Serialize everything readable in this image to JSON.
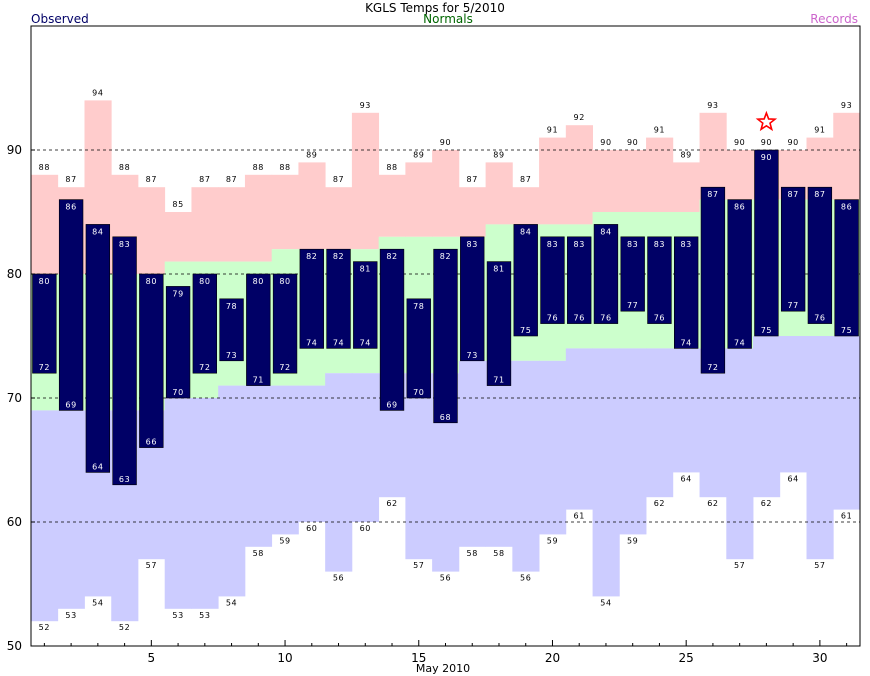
{
  "chart_data": {
    "type": "bar",
    "title": "KGLS Temps for 5/2010",
    "xlabel": "May 2010",
    "ylabel": "",
    "legend": {
      "observed": "Observed",
      "normals": "Normals",
      "records": "Records",
      "placement": "top"
    },
    "xlim": [
      0.5,
      31.5
    ],
    "ylim": [
      50,
      100
    ],
    "x_ticks": [
      5,
      10,
      15,
      20,
      25,
      30
    ],
    "y_ticks": [
      50,
      60,
      70,
      80,
      90
    ],
    "dashed_gridlines": [
      60,
      70,
      80,
      90
    ],
    "days": [
      1,
      2,
      3,
      4,
      5,
      6,
      7,
      8,
      9,
      10,
      11,
      12,
      13,
      14,
      15,
      16,
      17,
      18,
      19,
      20,
      21,
      22,
      23,
      24,
      25,
      26,
      27,
      28,
      29,
      30,
      31
    ],
    "observed_high": [
      80,
      86,
      84,
      83,
      80,
      79,
      80,
      78,
      80,
      80,
      82,
      82,
      81,
      82,
      78,
      82,
      83,
      81,
      84,
      83,
      83,
      84,
      83,
      83,
      83,
      87,
      86,
      90,
      87,
      87,
      86
    ],
    "observed_low": [
      72,
      69,
      64,
      63,
      66,
      70,
      72,
      73,
      71,
      72,
      74,
      74,
      74,
      69,
      70,
      68,
      73,
      71,
      75,
      76,
      76,
      76,
      77,
      76,
      74,
      72,
      74,
      75,
      77,
      76,
      75
    ],
    "normal_high": [
      80,
      80,
      80,
      80,
      80,
      81,
      81,
      81,
      81,
      82,
      82,
      82,
      82,
      83,
      83,
      83,
      83,
      84,
      84,
      84,
      84,
      85,
      85,
      85,
      85,
      86,
      86,
      86,
      86,
      86,
      86
    ],
    "normal_low": [
      69,
      69,
      69,
      69,
      69,
      70,
      70,
      71,
      71,
      71,
      71,
      72,
      72,
      72,
      72,
      72,
      73,
      73,
      73,
      73,
      74,
      74,
      74,
      74,
      74,
      74,
      74,
      75,
      75,
      75,
      75
    ],
    "record_high": [
      88,
      87,
      94,
      88,
      87,
      85,
      87,
      87,
      88,
      88,
      89,
      87,
      93,
      88,
      89,
      90,
      87,
      89,
      87,
      91,
      92,
      90,
      90,
      91,
      89,
      93,
      90,
      90,
      90,
      91,
      93
    ],
    "record_low": [
      52,
      53,
      54,
      52,
      57,
      53,
      53,
      54,
      58,
      59,
      60,
      56,
      60,
      62,
      57,
      56,
      58,
      58,
      56,
      59,
      61,
      54,
      59,
      62,
      64,
      62,
      57,
      62,
      64,
      57,
      61
    ],
    "record_marker_days": [
      28
    ],
    "colors": {
      "observed": "#000066",
      "normal": "#ccffcc",
      "record_high": "#ffcccc",
      "record_low": "#ccccff",
      "title_observed": "#000066",
      "title_normals": "#006600",
      "title_records": "#cc66cc",
      "star": "#ff0000"
    }
  }
}
